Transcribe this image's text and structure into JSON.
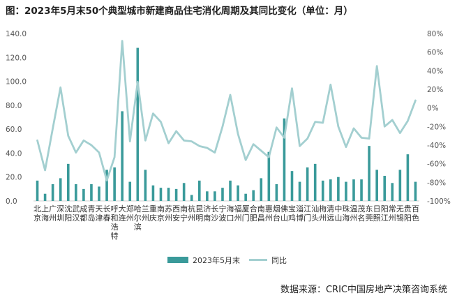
{
  "title": "图：2023年5月末50个典型城市新建商品住宅消化周期及其同比变化（单位：月）",
  "source": "数据来源：CRIC中国房地产决策咨询系统",
  "colors": {
    "bar": "#3a9a9a",
    "line": "#a3cfd0",
    "axis": "#cfcfcf"
  },
  "chart_data": {
    "type": "bar",
    "title": "图：2023年5月末50个典型城市新建商品住宅消化周期及其同比变化（单位：月）",
    "categories": [
      "北京",
      "上海",
      "广州",
      "深圳",
      "沈阳",
      "武汉",
      "成都",
      "青岛",
      "天津",
      "长春",
      "呼和浩特",
      "大连",
      "郑州",
      "哈尔滨",
      "兰州",
      "重庆",
      "南京",
      "苏州",
      "西安",
      "南宁",
      "杭州",
      "昆明",
      "济南",
      "长沙",
      "宁波",
      "海口",
      "福州",
      "厦门",
      "合肥",
      "南昌",
      "惠州",
      "烟台",
      "佛山",
      "宝鸡",
      "淄博",
      "江门",
      "汕头",
      "梅州",
      "清远",
      "中山",
      "珠海",
      "温州",
      "茂名",
      "东莞",
      "日照",
      "阳江",
      "常州",
      "无锡",
      "贵阳",
      "百色"
    ],
    "left_axis": {
      "min": 0,
      "max": 140,
      "ticks": [
        "0.0",
        "20.0",
        "40.0",
        "60.0",
        "80.0",
        "100.0",
        "120.0",
        "140.0"
      ]
    },
    "right_axis": {
      "min": -100,
      "max": 80,
      "ticks": [
        "-100%",
        "-80%",
        "-60%",
        "-40%",
        "-20%",
        "0%",
        "20%",
        "40%",
        "60%",
        "80%"
      ]
    },
    "series": [
      {
        "name": "2023年5月末",
        "type": "bar",
        "axis": "left",
        "values": [
          17,
          6,
          14,
          19,
          31,
          14,
          10,
          14,
          12,
          26,
          28,
          75,
          16,
          128,
          26,
          13,
          11,
          11,
          10,
          15,
          5,
          17,
          8,
          8,
          11,
          17,
          13,
          6,
          9,
          19,
          41,
          14,
          69,
          25,
          16,
          28,
          31,
          17,
          18,
          20,
          16,
          18,
          18,
          46,
          26,
          21,
          15,
          26,
          39,
          16
        ]
      },
      {
        "name": "同比",
        "type": "line",
        "axis": "right",
        "values": [
          -35,
          -67,
          -22,
          22,
          -30,
          -48,
          -35,
          -40,
          -48,
          -78,
          -53,
          72,
          -36,
          28,
          -35,
          -6,
          -15,
          -38,
          -25,
          -35,
          -36,
          -41,
          -43,
          -48,
          -20,
          14,
          -28,
          -56,
          -39,
          -46,
          -53,
          -21,
          -32,
          21,
          -41,
          -33,
          -15,
          -16,
          25,
          -20,
          -42,
          -22,
          -32,
          -33,
          45,
          -20,
          -13,
          -27,
          -14,
          8
        ]
      }
    ],
    "legend": {
      "position": "bottom",
      "entries": [
        "2023年5月末",
        "同比"
      ]
    },
    "grid": false
  }
}
